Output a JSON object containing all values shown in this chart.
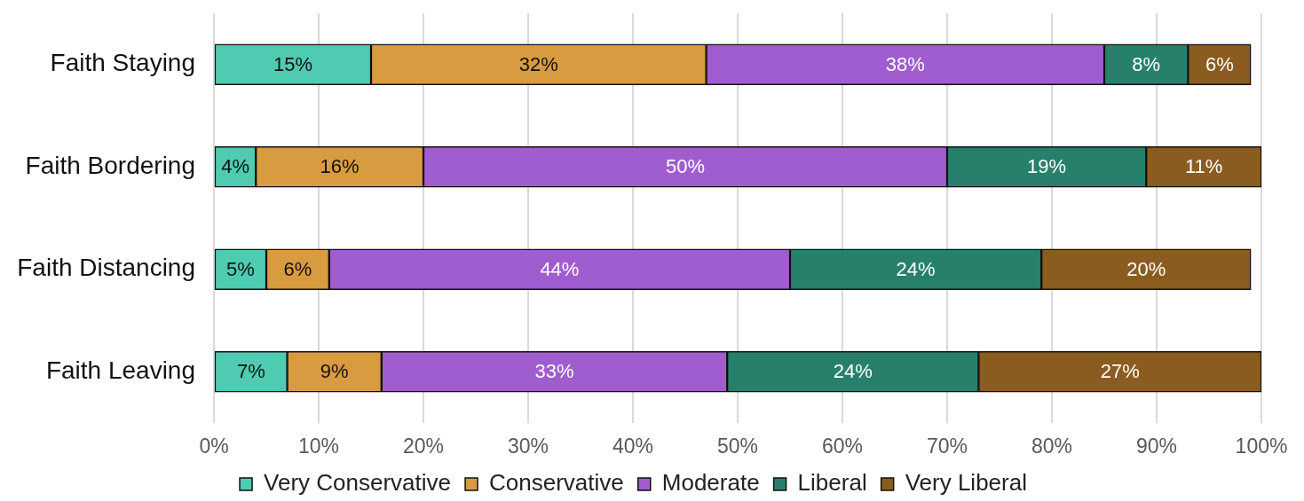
{
  "chart_data": {
    "type": "bar",
    "orientation": "horizontal",
    "stacked": true,
    "categories": [
      "Faith Staying",
      "Faith Bordering",
      "Faith Distancing",
      "Faith Leaving"
    ],
    "series": [
      {
        "name": "Very Conservative",
        "color": "#4ecbb0",
        "values": [
          15,
          4,
          5,
          7
        ],
        "value_labels": [
          "15%",
          "4%",
          "5%",
          "7%"
        ]
      },
      {
        "name": "Conservative",
        "color": "#d99b40",
        "values": [
          32,
          16,
          6,
          9
        ],
        "value_labels": [
          "32%",
          "16%",
          "6%",
          "9%"
        ]
      },
      {
        "name": "Moderate",
        "color": "#a05dd0",
        "values": [
          38,
          50,
          44,
          33
        ],
        "value_labels": [
          "38%",
          "50%",
          "44%",
          "33%"
        ]
      },
      {
        "name": "Liberal",
        "color": "#27806c",
        "values": [
          8,
          19,
          24,
          24
        ],
        "value_labels": [
          "8%",
          "19%",
          "24%",
          "24%"
        ]
      },
      {
        "name": "Very Liberal",
        "color": "#8b5c1f",
        "values": [
          6,
          11,
          20,
          27
        ],
        "value_labels": [
          "6%",
          "11%",
          "20%",
          "27%"
        ]
      }
    ],
    "xlim": [
      0,
      100
    ],
    "xticks": [
      {
        "value": 0,
        "label": "0%"
      },
      {
        "value": 10,
        "label": "10%"
      },
      {
        "value": 20,
        "label": "20%"
      },
      {
        "value": 30,
        "label": "30%"
      },
      {
        "value": 40,
        "label": "40%"
      },
      {
        "value": 50,
        "label": "50%"
      },
      {
        "value": 60,
        "label": "60%"
      },
      {
        "value": 70,
        "label": "70%"
      },
      {
        "value": 80,
        "label": "80%"
      },
      {
        "value": 90,
        "label": "90%"
      },
      {
        "value": 100,
        "label": "100%"
      }
    ],
    "grid": "x",
    "legend": "bottom"
  }
}
